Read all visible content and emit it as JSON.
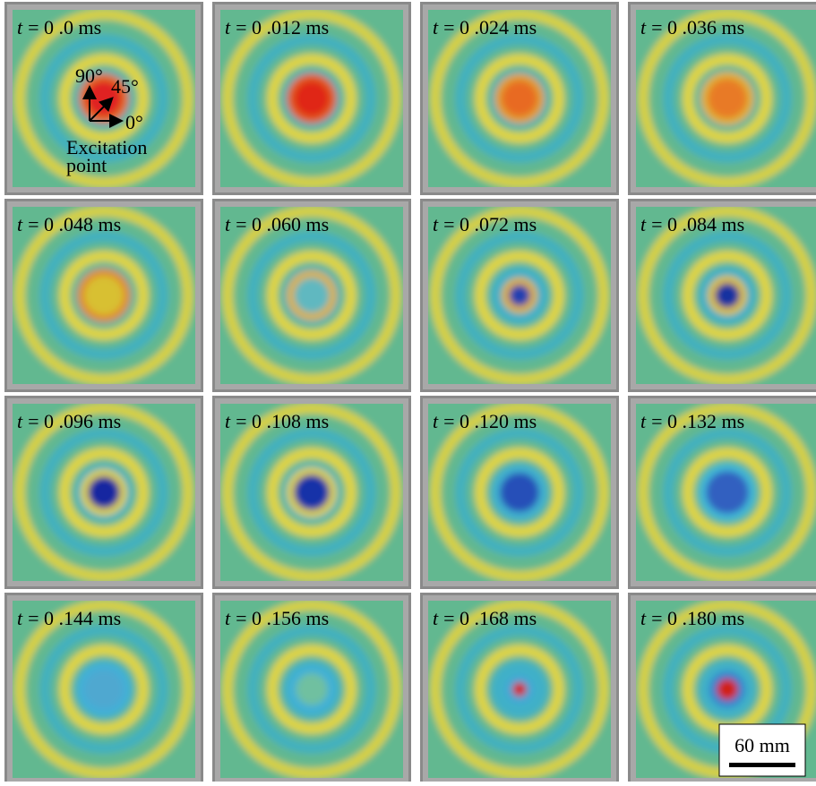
{
  "label_var": "t",
  "panels": [
    {
      "label": "= 0 .0 ms"
    },
    {
      "label": "= 0 .012 ms"
    },
    {
      "label": "= 0 .024 ms"
    },
    {
      "label": "= 0 .036 ms"
    },
    {
      "label": "= 0 .048 ms"
    },
    {
      "label": "= 0 .060 ms"
    },
    {
      "label": "= 0 .072 ms"
    },
    {
      "label": "= 0 .084 ms"
    },
    {
      "label": "= 0 .096 ms"
    },
    {
      "label": "= 0 .108 ms"
    },
    {
      "label": "= 0 .120 ms"
    },
    {
      "label": "= 0 .132 ms"
    },
    {
      "label": "= 0 .144 ms"
    },
    {
      "label": "= 0 .156 ms"
    },
    {
      "label": "= 0 .168 ms"
    },
    {
      "label": "= 0 .180 ms"
    }
  ],
  "annotations": {
    "angle_90": "90°",
    "angle_45": "45°",
    "angle_0": "0°",
    "excitation": "Excitation",
    "point": "point"
  },
  "scale_bar": "60 mm"
}
